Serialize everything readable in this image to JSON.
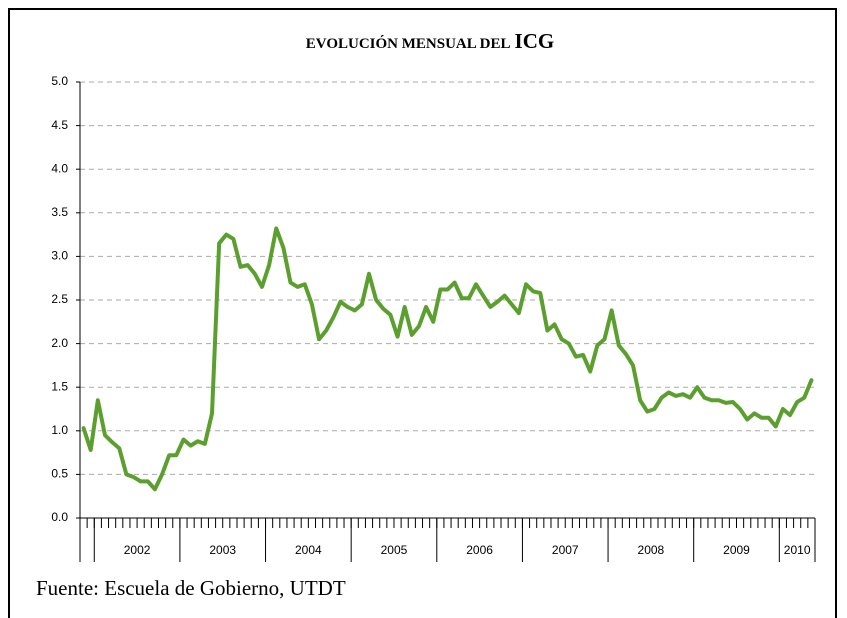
{
  "chart_data": {
    "type": "line",
    "title": "EVOLUCIÓN MENSUAL DEL",
    "title_emphasis": "ICG",
    "source": "Fuente: Escuela de Gobierno, UTDT",
    "color": "#5b9f2e",
    "grid": true,
    "ylim": [
      0,
      5
    ],
    "yticks": [
      {
        "value": 0,
        "label": "0.0"
      },
      0.5,
      {
        "value": 1,
        "label": "1.0"
      },
      1.5,
      {
        "value": 2,
        "label": "2.0"
      },
      2.5,
      {
        "value": 3,
        "label": "3.0"
      },
      3.5,
      {
        "value": 4,
        "label": "4.0"
      },
      4.5,
      {
        "value": 5,
        "label": "5.0"
      }
    ],
    "year_groups": [
      {
        "label": null,
        "months": 2
      },
      {
        "label": "2002",
        "months": 12
      },
      {
        "label": "2003",
        "months": 12
      },
      {
        "label": "2004",
        "months": 12
      },
      {
        "label": "2005",
        "months": 12
      },
      {
        "label": "2006",
        "months": 12
      },
      {
        "label": "2007",
        "months": 12
      },
      {
        "label": "2008",
        "months": 12
      },
      {
        "label": "2009",
        "months": 12
      },
      {
        "label": "2010",
        "months": 5
      }
    ],
    "categories": [
      null,
      null,
      null,
      null,
      null,
      null,
      null,
      null,
      null,
      null,
      null,
      null,
      null,
      null,
      null,
      null,
      null,
      null,
      null,
      null,
      null,
      null,
      null,
      null,
      null,
      null,
      null,
      null,
      null,
      null,
      null,
      null,
      null,
      null,
      null,
      null,
      null,
      null,
      null,
      null,
      null,
      null,
      null,
      null,
      null,
      null,
      null,
      null,
      null,
      null,
      null,
      null,
      null,
      null,
      null,
      null,
      null,
      null,
      null,
      null,
      null,
      null,
      null,
      null,
      null,
      null,
      null,
      null,
      null,
      null,
      null,
      null,
      null,
      null,
      null,
      null,
      null,
      null,
      null,
      null,
      null,
      null,
      null,
      null,
      null,
      null,
      null,
      null,
      null,
      null,
      null,
      null,
      null,
      null,
      null,
      null,
      null,
      null,
      null,
      null,
      null,
      null,
      null
    ],
    "values": [
      1.03,
      0.78,
      1.35,
      0.95,
      0.87,
      0.8,
      0.5,
      0.47,
      0.42,
      0.42,
      0.33,
      0.5,
      0.72,
      0.72,
      0.9,
      0.83,
      0.88,
      0.85,
      1.2,
      3.15,
      3.25,
      3.2,
      2.88,
      2.9,
      2.8,
      2.65,
      2.9,
      3.32,
      3.1,
      2.7,
      2.65,
      2.68,
      2.45,
      2.05,
      2.15,
      2.3,
      2.48,
      2.42,
      2.38,
      2.45,
      2.8,
      2.5,
      2.4,
      2.33,
      2.08,
      2.42,
      2.1,
      2.2,
      2.42,
      2.25,
      2.62,
      2.62,
      2.7,
      2.52,
      2.52,
      2.68,
      2.55,
      2.42,
      2.48,
      2.55,
      2.45,
      2.35,
      2.68,
      2.6,
      2.58,
      2.15,
      2.22,
      2.05,
      2.0,
      1.85,
      1.87,
      1.68,
      1.98,
      2.05,
      2.38,
      1.98,
      1.88,
      1.75,
      1.35,
      1.22,
      1.25,
      1.38,
      1.44,
      1.4,
      1.42,
      1.38,
      1.5,
      1.38,
      1.35,
      1.35,
      1.32,
      1.33,
      1.25,
      1.13,
      1.2,
      1.15,
      1.15,
      1.05,
      1.25,
      1.18,
      1.33,
      1.38,
      1.58
    ]
  }
}
